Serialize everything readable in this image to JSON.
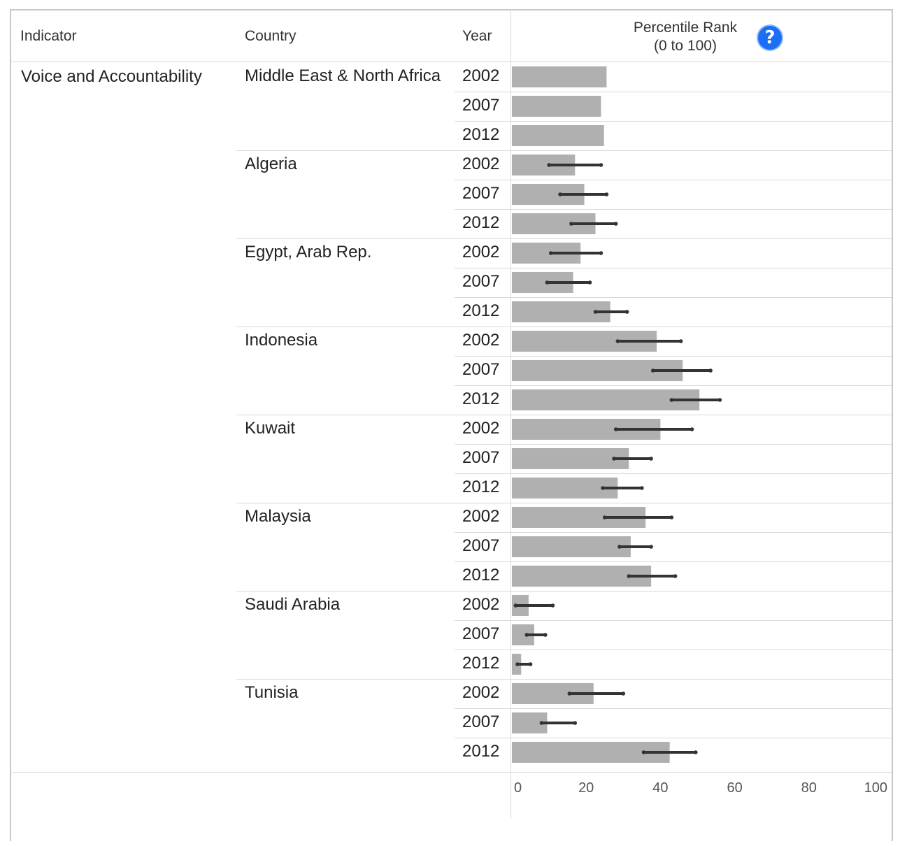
{
  "header": {
    "indicator": "Indicator",
    "country": "Country",
    "year": "Year",
    "rank_line1": "Percentile Rank",
    "rank_line2": "(0 to 100)",
    "help_glyph": "?"
  },
  "indicator_name": "Voice and Accountability",
  "colors": {
    "bar": "#b0b0b0",
    "error": "#333333",
    "help": "#1a6ff5"
  },
  "chart_data": {
    "type": "bar",
    "orientation": "horizontal",
    "xlim": [
      0,
      100
    ],
    "xticks": [
      0,
      20,
      40,
      60,
      80,
      100
    ],
    "groups": [
      {
        "country": "Middle East & North Africa",
        "rows": [
          {
            "year": "2002",
            "value": 25.5,
            "low": null,
            "high": null
          },
          {
            "year": "2007",
            "value": 24,
            "low": null,
            "high": null
          },
          {
            "year": "2012",
            "value": 24.8,
            "low": null,
            "high": null
          }
        ]
      },
      {
        "country": "Algeria",
        "rows": [
          {
            "year": "2002",
            "value": 17,
            "low": 10,
            "high": 24
          },
          {
            "year": "2007",
            "value": 19.5,
            "low": 13,
            "high": 25.5
          },
          {
            "year": "2012",
            "value": 22.5,
            "low": 16,
            "high": 28
          }
        ]
      },
      {
        "country": "Egypt, Arab Rep.",
        "rows": [
          {
            "year": "2002",
            "value": 18.5,
            "low": 10.5,
            "high": 24
          },
          {
            "year": "2007",
            "value": 16.5,
            "low": 9.5,
            "high": 21
          },
          {
            "year": "2012",
            "value": 26.5,
            "low": 22.5,
            "high": 31
          }
        ]
      },
      {
        "country": "Indonesia",
        "rows": [
          {
            "year": "2002",
            "value": 39,
            "low": 28.5,
            "high": 45.5
          },
          {
            "year": "2007",
            "value": 46,
            "low": 38,
            "high": 53.5
          },
          {
            "year": "2012",
            "value": 50.5,
            "low": 43,
            "high": 56
          }
        ]
      },
      {
        "country": "Kuwait",
        "rows": [
          {
            "year": "2002",
            "value": 40,
            "low": 28,
            "high": 48.5
          },
          {
            "year": "2007",
            "value": 31.5,
            "low": 27.5,
            "high": 37.5
          },
          {
            "year": "2012",
            "value": 28.5,
            "low": 24.5,
            "high": 35
          }
        ]
      },
      {
        "country": "Malaysia",
        "rows": [
          {
            "year": "2002",
            "value": 36,
            "low": 25,
            "high": 43
          },
          {
            "year": "2007",
            "value": 32,
            "low": 29,
            "high": 37.5
          },
          {
            "year": "2012",
            "value": 37.5,
            "low": 31.5,
            "high": 44
          }
        ]
      },
      {
        "country": "Saudi Arabia",
        "rows": [
          {
            "year": "2002",
            "value": 4.5,
            "low": 1,
            "high": 11
          },
          {
            "year": "2007",
            "value": 6,
            "low": 4,
            "high": 9
          },
          {
            "year": "2012",
            "value": 2.5,
            "low": 1.5,
            "high": 5
          }
        ]
      },
      {
        "country": "Tunisia",
        "rows": [
          {
            "year": "2002",
            "value": 22,
            "low": 15.5,
            "high": 30
          },
          {
            "year": "2007",
            "value": 9.5,
            "low": 8,
            "high": 17
          },
          {
            "year": "2012",
            "value": 42.5,
            "low": 35.5,
            "high": 49.5
          }
        ]
      }
    ]
  }
}
